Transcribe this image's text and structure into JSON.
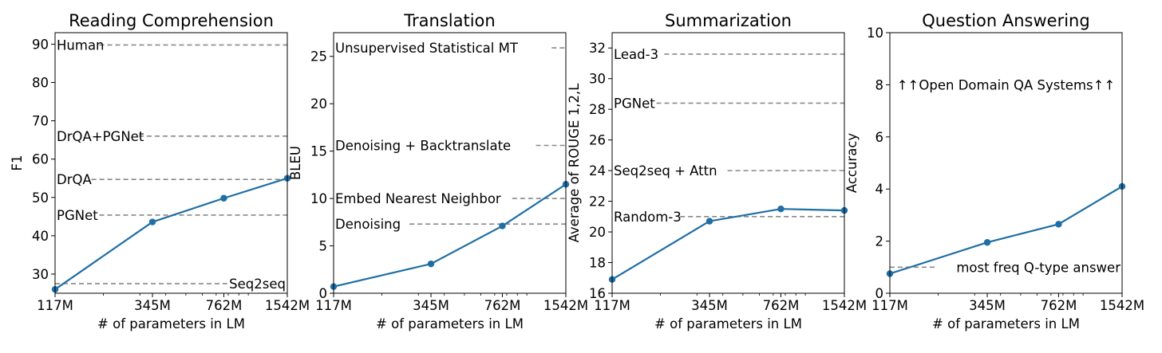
{
  "chart_data": [
    {
      "type": "line",
      "title": "Reading Comprehension",
      "xlabel": "# of parameters in LM",
      "ylabel": "F1",
      "x_scale": "log",
      "categories": [
        "117M",
        "345M",
        "762M",
        "1542M"
      ],
      "x": [
        117,
        345,
        762,
        1542
      ],
      "ylim": [
        25,
        93
      ],
      "yticks": [
        30,
        40,
        50,
        60,
        70,
        80,
        90
      ],
      "series": [
        {
          "values": [
            26,
            43.6,
            49.8,
            55
          ]
        }
      ],
      "baselines": [
        {
          "label": "Human",
          "value": 89.8,
          "label_pos": "left"
        },
        {
          "label": "DrQA+PGNet",
          "value": 66,
          "label_pos": "left"
        },
        {
          "label": "DrQA",
          "value": 54.7,
          "label_pos": "left"
        },
        {
          "label": "PGNet",
          "value": 45.4,
          "label_pos": "left"
        },
        {
          "label": "Seq2seq",
          "value": 27.5,
          "label_pos": "right"
        }
      ],
      "grid": false
    },
    {
      "type": "line",
      "title": "Translation",
      "xlabel": "# of parameters in LM",
      "ylabel": "BLEU",
      "x_scale": "log",
      "categories": [
        "117M",
        "345M",
        "762M",
        "1542M"
      ],
      "x": [
        117,
        345,
        762,
        1542
      ],
      "ylim": [
        0,
        27.5
      ],
      "yticks": [
        0,
        5,
        10,
        15,
        20,
        25
      ],
      "series": [
        {
          "values": [
            0.7,
            3.1,
            7.1,
            11.5
          ]
        }
      ],
      "baselines": [
        {
          "label": "Unsupervised Statistical MT",
          "value": 25.9,
          "label_pos": "left"
        },
        {
          "label": "Denoising + Backtranslate",
          "value": 15.6,
          "label_pos": "left"
        },
        {
          "label": "Embed Nearest Neighbor",
          "value": 10,
          "label_pos": "left"
        },
        {
          "label": "Denoising",
          "value": 7.3,
          "label_pos": "left"
        }
      ],
      "grid": false
    },
    {
      "type": "line",
      "title": "Summarization",
      "xlabel": "# of parameters in LM",
      "ylabel": "Average of ROUGE 1,2,L",
      "x_scale": "log",
      "categories": [
        "117M",
        "345M",
        "762M",
        "1542M"
      ],
      "x": [
        117,
        345,
        762,
        1542
      ],
      "ylim": [
        16,
        33
      ],
      "yticks": [
        16,
        18,
        20,
        22,
        24,
        26,
        28,
        30,
        32
      ],
      "series": [
        {
          "values": [
            16.9,
            20.7,
            21.5,
            21.4
          ]
        }
      ],
      "baselines": [
        {
          "label": "Lead-3",
          "value": 31.6,
          "label_pos": "left"
        },
        {
          "label": "PGNet",
          "value": 28.4,
          "label_pos": "left"
        },
        {
          "label": "Seq2seq + Attn",
          "value": 24,
          "label_pos": "left"
        },
        {
          "label": "Random-3",
          "value": 21,
          "label_pos": "left"
        }
      ],
      "grid": false
    },
    {
      "type": "line",
      "title": "Question Answering",
      "xlabel": "# of parameters in LM",
      "ylabel": "Accuracy",
      "x_scale": "log",
      "categories": [
        "117M",
        "345M",
        "762M",
        "1542M"
      ],
      "x": [
        117,
        345,
        762,
        1542
      ],
      "ylim": [
        0,
        10
      ],
      "yticks": [
        0,
        2,
        4,
        6,
        8,
        10
      ],
      "series": [
        {
          "values": [
            0.75,
            1.95,
            2.65,
            4.1
          ]
        }
      ],
      "baselines": [
        {
          "label": "most freq Q-type answer",
          "value": 1,
          "label_pos": "right"
        }
      ],
      "annotations": [
        {
          "text": "↑↑Open Domain QA Systems↑↑",
          "y": 8
        }
      ],
      "grid": false
    }
  ],
  "style": {
    "line_color": "#1f6ea5",
    "baseline_color": "#888888",
    "axis_color": "#000000"
  }
}
